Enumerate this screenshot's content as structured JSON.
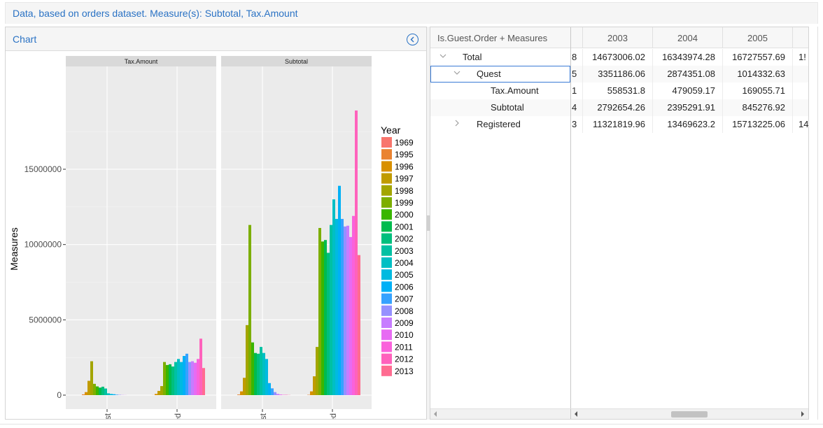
{
  "banner": {
    "title": "Data, based on orders dataset. Measure(s): Subtotal, Tax.Amount"
  },
  "chart_panel": {
    "title": "Chart",
    "collapse_icon": "chevron-left-circle-icon"
  },
  "chart_data": {
    "type": "bar",
    "ylabel": "Measures",
    "xlabel": "",
    "facets": [
      "Tax.Amount",
      "Subtotal"
    ],
    "categories": [
      "Quest",
      "Registered"
    ],
    "category_tick_labels": [
      "Quest",
      "egistered"
    ],
    "ylim": [
      0,
      19000000
    ],
    "yticks": [
      0,
      5000000,
      10000000,
      15000000
    ],
    "ytick_labels": [
      "0",
      "5000000",
      "10000000",
      "15000000"
    ],
    "legend": {
      "title": "Year",
      "position": "right"
    },
    "years": [
      "1969",
      "1995",
      "1996",
      "1997",
      "1998",
      "1999",
      "2000",
      "2001",
      "2002",
      "2003",
      "2004",
      "2005",
      "2006",
      "2007",
      "2008",
      "2009",
      "2010",
      "2011",
      "2012",
      "2013"
    ],
    "colors": [
      "#F8766D",
      "#EA8331",
      "#D89000",
      "#C09B00",
      "#A3A500",
      "#7CAE00",
      "#39B600",
      "#00BB4E",
      "#00BF7D",
      "#00C1A3",
      "#00BFC4",
      "#00BAE0",
      "#00B0F6",
      "#35A2FF",
      "#9590FF",
      "#C77CFF",
      "#E76BF3",
      "#FA62DB",
      "#FF62BC",
      "#FF6C91"
    ],
    "values": {
      "Tax.Amount": {
        "Quest": [
          0,
          50000,
          200000,
          950000,
          2250000,
          750000,
          580000,
          500000,
          560000,
          440000,
          120000,
          80000,
          60000,
          30000,
          20000,
          10000,
          5000,
          0,
          0,
          0
        ],
        "Registered": [
          0,
          5000,
          80000,
          280000,
          600000,
          2200000,
          2000000,
          2050000,
          1900000,
          2200000,
          2400000,
          2200000,
          2600000,
          2750000,
          2200000,
          2250000,
          2150000,
          2400000,
          3750000,
          1800000
        ]
      },
      "Subtotal": {
        "Quest": [
          0,
          40000,
          250000,
          1150000,
          4650000,
          11300000,
          3500000,
          2800000,
          2750000,
          3200000,
          2800000,
          2400000,
          800000,
          450000,
          200000,
          80000,
          40000,
          20000,
          20000,
          10000
        ],
        "Registered": [
          0,
          20000,
          250000,
          1250000,
          3200000,
          11100000,
          10200000,
          10300000,
          9450000,
          11300000,
          13000000,
          11700000,
          13900000,
          11700000,
          11200000,
          11250000,
          10500000,
          11900000,
          18900000,
          9300000
        ]
      }
    }
  },
  "pivot": {
    "corner_label": "Is.Guest.Order + Measures",
    "columns": [
      "",
      "2003",
      "2004",
      "2005",
      ""
    ],
    "rows": [
      {
        "label": "Total",
        "indent": 0,
        "chevron": "chevron-down",
        "values": [
          "8",
          "14673006.02",
          "16343974.28",
          "16727557.69",
          "1!"
        ]
      },
      {
        "label": "Quest",
        "indent": 1,
        "chevron": "chevron-down",
        "selected": true,
        "values": [
          "5",
          "3351186.06",
          "2874351.08",
          "1014332.63",
          ""
        ]
      },
      {
        "label": "Tax.Amount",
        "indent": 2,
        "chevron": "",
        "values": [
          "1",
          "558531.8",
          "479059.17",
          "169055.71",
          ""
        ]
      },
      {
        "label": "Subtotal",
        "indent": 2,
        "chevron": "",
        "values": [
          "4",
          "2792654.26",
          "2395291.91",
          "845276.92",
          ""
        ]
      },
      {
        "label": "Registered",
        "indent": 1,
        "chevron": "chevron-right",
        "values": [
          "3",
          "11321819.96",
          "13469623.2",
          "15713225.06",
          "14"
        ]
      }
    ]
  }
}
